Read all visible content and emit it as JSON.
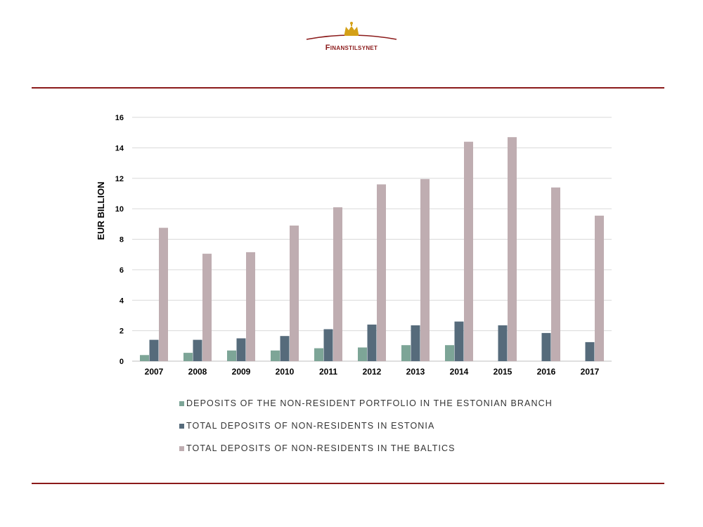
{
  "header": {
    "logo_text": "Finanstilsynet"
  },
  "colors": {
    "rule": "#8b1a1a",
    "brand": "#8b1a1a",
    "crown": "#d4a017"
  },
  "chart_data": {
    "type": "bar",
    "title": "",
    "xlabel": "",
    "ylabel": "EUR BILLION",
    "ylim": [
      0,
      16
    ],
    "yticks": [
      "0",
      "2",
      "4",
      "6",
      "8",
      "10",
      "12",
      "14",
      "16"
    ],
    "grid": true,
    "legend_position": "bottom",
    "categories": [
      "2007",
      "2008",
      "2009",
      "2010",
      "2011",
      "2012",
      "2013",
      "2014",
      "2015",
      "2016",
      "2017"
    ],
    "series": [
      {
        "name": "DEPOSITS OF THE NON-RESIDENT PORTFOLIO IN THE ESTONIAN BRANCH",
        "color": "#7da597",
        "values": [
          0.4,
          0.55,
          0.7,
          0.7,
          0.85,
          0.9,
          1.05,
          1.05,
          null,
          null,
          null
        ]
      },
      {
        "name": "TOTAL DEPOSITS OF NON-RESIDENTS IN ESTONIA",
        "color": "#566b7b",
        "values": [
          1.4,
          1.4,
          1.5,
          1.65,
          2.1,
          2.4,
          2.35,
          2.6,
          2.35,
          1.85,
          1.25
        ]
      },
      {
        "name": "TOTAL DEPOSITS OF NON-RESIDENTS IN THE BALTICS",
        "color": "#bfadb1",
        "values": [
          8.75,
          7.05,
          7.15,
          8.9,
          10.1,
          11.6,
          11.95,
          14.4,
          14.7,
          11.4,
          9.55
        ]
      }
    ]
  }
}
